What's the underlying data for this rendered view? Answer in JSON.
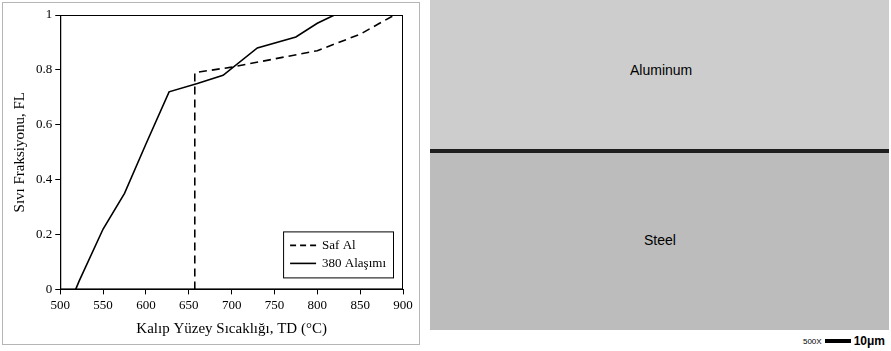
{
  "chart_data": {
    "type": "line",
    "x_label": "Kalıp Yüzey Sıcaklığı, TD (°C)",
    "y_label": "Sıvı Fraksiyonu, FL",
    "xlim": [
      500,
      900
    ],
    "xticks": [
      500,
      550,
      600,
      650,
      700,
      750,
      800,
      850,
      900
    ],
    "ylim": [
      0,
      1
    ],
    "yticks": [
      0,
      0.2,
      0.4,
      0.6,
      0.8,
      1
    ],
    "grid": false,
    "legend": "lower right",
    "series": [
      {
        "name": "Saf Al",
        "color": "#000000",
        "line_style": "dashed",
        "x": [
          657,
          657,
          700,
          750,
          800,
          850,
          890
        ],
        "values": [
          0,
          0.79,
          0.81,
          0.84,
          0.87,
          0.93,
          1.0
        ]
      },
      {
        "name": "380 Alaşımı",
        "color": "#000000",
        "line_style": "solid",
        "x": [
          518,
          522,
          550,
          575,
          600,
          627,
          660,
          690,
          730,
          775,
          800,
          820
        ],
        "values": [
          0,
          0.03,
          0.22,
          0.35,
          0.53,
          0.72,
          0.75,
          0.78,
          0.88,
          0.92,
          0.97,
          1.0
        ]
      }
    ]
  },
  "micrograph": {
    "top_label": "Aluminum",
    "bottom_label": "Steel",
    "scale_bar": {
      "magnification": "500X",
      "length": "10μm"
    }
  }
}
